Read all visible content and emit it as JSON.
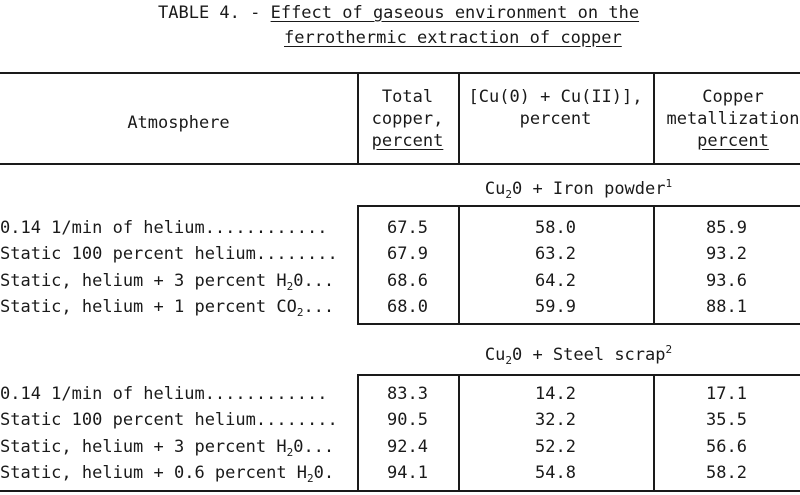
{
  "title": {
    "prefix": "TABLE 4. - ",
    "line1": "Effect of gaseous environment on the",
    "line2": "ferrothermic extraction of copper"
  },
  "headers": {
    "atmosphere": "Atmosphere",
    "total": [
      "Total",
      "copper,",
      "percent"
    ],
    "cu": [
      "[Cu(0) + Cu(II)],",
      "percent"
    ],
    "metal": [
      "Copper",
      "metallization",
      "percent"
    ]
  },
  "sections": [
    {
      "label_a": "Cu",
      "label_sub": "2",
      "label_b": "0 + Iron powder",
      "label_sup": "1",
      "rows": [
        {
          "a": "0.14 1/min of helium............",
          "s": "",
          "c": "",
          "total": "67.5",
          "cu": "58.0",
          "metal": "85.9"
        },
        {
          "a": "Static 100 percent helium........",
          "s": "",
          "c": "",
          "total": "67.9",
          "cu": "63.2",
          "metal": "93.2"
        },
        {
          "a": "Static, helium + 3 percent H",
          "s": "2",
          "c": "0...",
          "total": "68.6",
          "cu": "64.2",
          "metal": "93.6"
        },
        {
          "a": "Static, helium + 1 percent CO",
          "s": "2",
          "c": "...",
          "total": "68.0",
          "cu": "59.9",
          "metal": "88.1"
        }
      ]
    },
    {
      "label_a": "Cu",
      "label_sub": "2",
      "label_b": "0 + Steel scrap",
      "label_sup": "2",
      "rows": [
        {
          "a": "0.14 1/min of helium............",
          "s": "",
          "c": "",
          "total": "83.3",
          "cu": "14.2",
          "metal": "17.1"
        },
        {
          "a": "Static 100 percent helium........",
          "s": "",
          "c": "",
          "total": "90.5",
          "cu": "32.2",
          "metal": "35.5"
        },
        {
          "a": "Static, helium + 3 percent H",
          "s": "2",
          "c": "0...",
          "total": "92.4",
          "cu": "52.2",
          "metal": "56.6"
        },
        {
          "a": "Static, helium + 0.6 percent H",
          "s": "2",
          "c": "0.",
          "total": "94.1",
          "cu": "54.8",
          "metal": "58.2"
        }
      ]
    }
  ]
}
